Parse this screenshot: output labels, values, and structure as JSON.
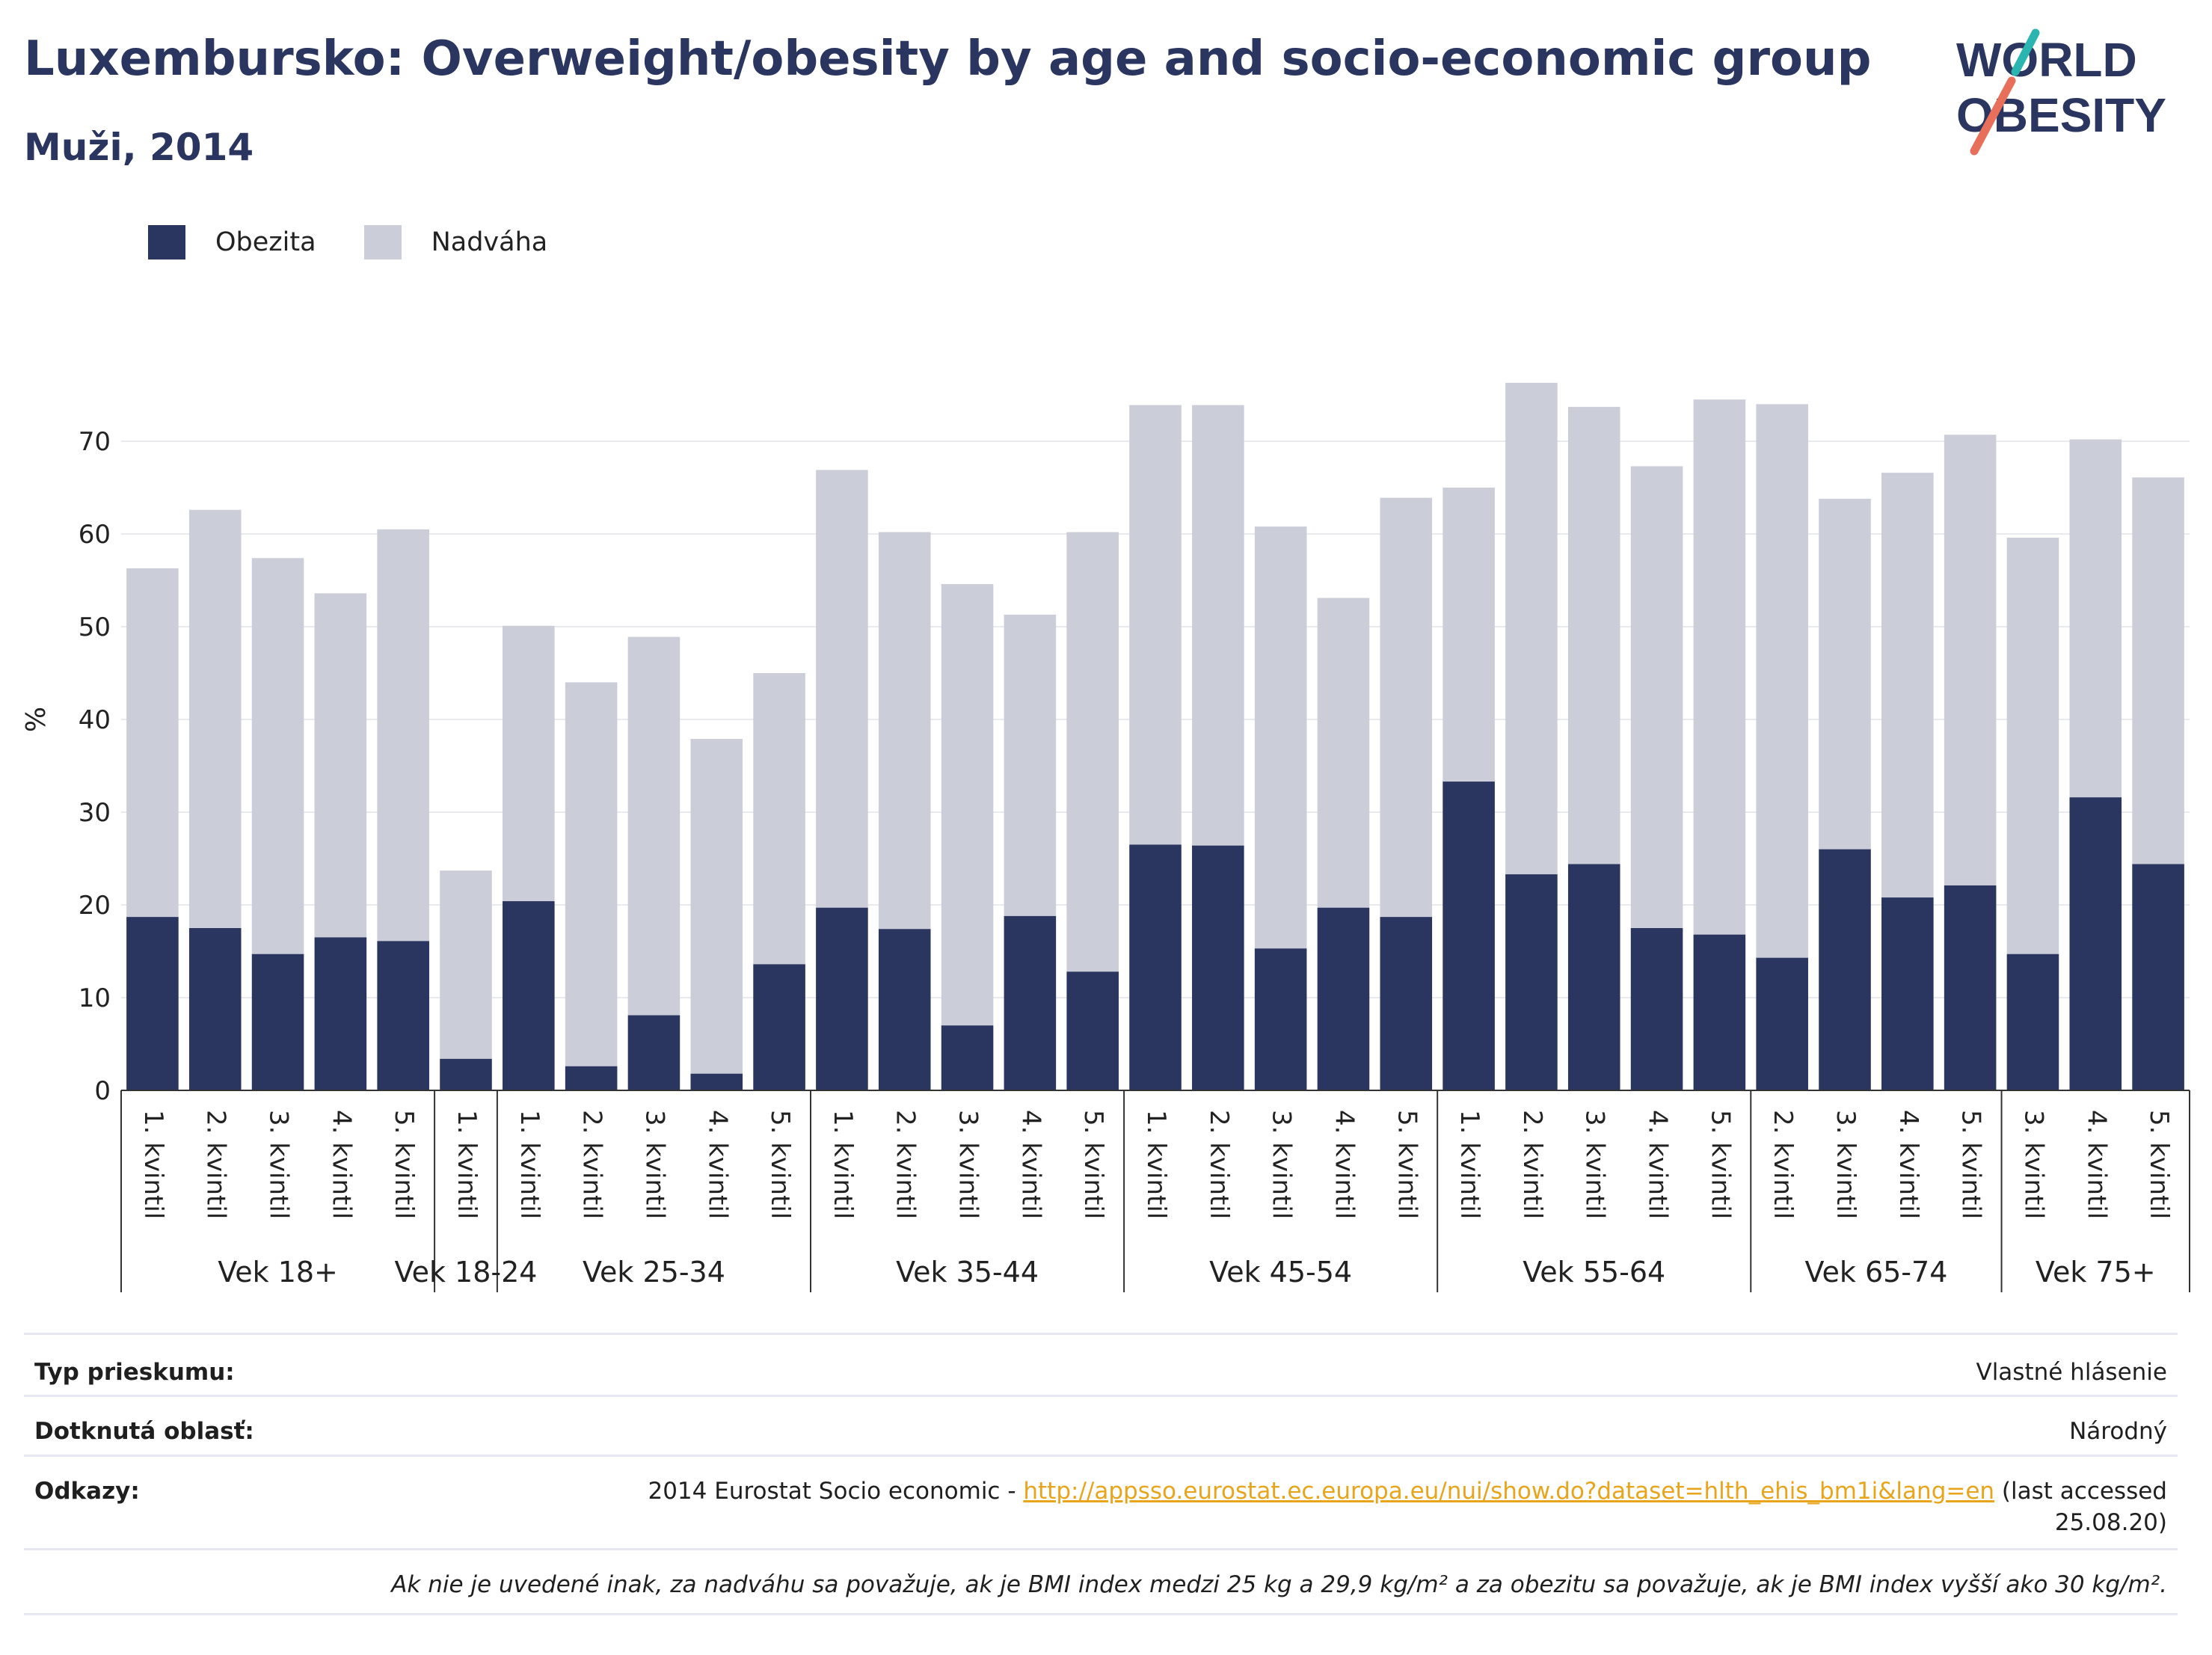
{
  "title": "Luxembursko: Overweight/obesity by age and socio-economic group",
  "subtitle": "Muži, 2014",
  "logo": {
    "line1": "WORLD",
    "line2": "OBESITY"
  },
  "colors": {
    "obesity": "#2a3560",
    "overweight": "#cbcdd8",
    "title": "#2a3560",
    "link": "#e8a51c"
  },
  "chart_data": {
    "type": "bar",
    "stacked": true,
    "ylabel": "%",
    "ylim": [
      0,
      80
    ],
    "yticks": [
      0,
      10,
      20,
      30,
      40,
      50,
      60,
      70
    ],
    "grid": true,
    "legend_position": "top-left",
    "series": [
      {
        "name": "Obezita",
        "color": "#2a3560",
        "values": [
          18.7,
          17.5,
          14.7,
          16.5,
          16.1,
          3.4,
          20.4,
          2.6,
          8.1,
          1.8,
          13.6,
          19.7,
          17.4,
          7.0,
          18.8,
          12.8,
          26.5,
          26.4,
          15.3,
          19.7,
          18.7,
          33.3,
          23.3,
          24.4,
          17.5,
          16.8,
          14.3,
          26.0,
          20.8,
          22.1,
          14.7,
          31.6,
          24.4
        ]
      },
      {
        "name": "Nadváha",
        "color": "#cbcdd8",
        "values": [
          37.6,
          45.1,
          42.7,
          37.1,
          44.4,
          20.3,
          29.7,
          41.4,
          40.8,
          36.1,
          31.4,
          47.2,
          42.8,
          47.6,
          32.5,
          47.4,
          47.4,
          47.5,
          45.5,
          33.4,
          45.2,
          31.7,
          53.0,
          49.3,
          49.8,
          57.7,
          59.7,
          37.8,
          45.8,
          48.6,
          44.9,
          38.6,
          41.7
        ]
      }
    ],
    "groups": [
      {
        "label": "Vek 18+",
        "categories": [
          "1. kvintil",
          "2. kvintil",
          "3. kvintil",
          "4. kvintil",
          "5. kvintil"
        ]
      },
      {
        "label": "Vek 18-24",
        "categories": [
          "1. kvintil"
        ]
      },
      {
        "label": "Vek 25-34",
        "categories": [
          "1. kvintil",
          "2. kvintil",
          "3. kvintil",
          "4. kvintil",
          "5. kvintil"
        ]
      },
      {
        "label": "Vek 35-44",
        "categories": [
          "1. kvintil",
          "2. kvintil",
          "3. kvintil",
          "4. kvintil",
          "5. kvintil"
        ]
      },
      {
        "label": "Vek 45-54",
        "categories": [
          "1. kvintil",
          "2. kvintil",
          "3. kvintil",
          "4. kvintil",
          "5. kvintil"
        ]
      },
      {
        "label": "Vek 55-64",
        "categories": [
          "1. kvintil",
          "2. kvintil",
          "3. kvintil",
          "4. kvintil",
          "5. kvintil"
        ]
      },
      {
        "label": "Vek 65-74",
        "categories": [
          "2. kvintil",
          "3. kvintil",
          "4. kvintil",
          "5. kvintil"
        ]
      },
      {
        "label": "Vek 75+",
        "categories": [
          "3. kvintil",
          "4. kvintil",
          "5. kvintil"
        ]
      }
    ]
  },
  "info": {
    "survey_type_label": "Typ prieskumu:",
    "survey_type_value": "Vlastné hlásenie",
    "coverage_label": "Dotknutá oblasť:",
    "coverage_value": "Národný",
    "references_label": "Odkazy:",
    "references_prefix": "2014 Eurostat Socio economic - ",
    "references_link": "http://appsso.eurostat.ec.europa.eu/nui/show.do?dataset=hlth_ehis_bm1i&lang=en",
    "references_suffix": " (last accessed",
    "references_date": "25.08.20)",
    "note": "Ak nie je uvedené inak, za nadváhu sa považuje, ak je BMI index medzi 25 kg a 29,9 kg/m² a za obezitu sa považuje, ak je BMI index vyšší ako 30 kg/m²."
  }
}
